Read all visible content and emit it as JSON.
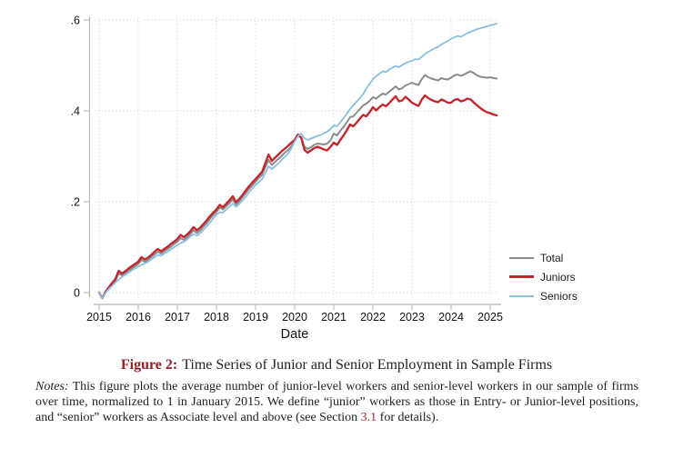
{
  "figure": {
    "caption_label": "Figure 2:",
    "caption_text": "Time Series of Junior and Senior Employment in Sample Firms",
    "notes_label": "Notes:",
    "notes_text_1": "This figure plots the average number of junior-level workers and senior-level workers in our sample of firms over time, normalized to 1 in January 2015. We define “junior” workers as those in Entry- or Junior-level positions, and “senior” workers as Associate level and above (see Section ",
    "notes_link": "3.1",
    "notes_text_2": " for details)."
  },
  "colors": {
    "gridline": "#d8d8d8",
    "axis": "#b5b5b5",
    "tick_text": "#111111",
    "caption_maroon": "#8e2126",
    "link_red": "#b0282e"
  },
  "chart_data": {
    "type": "line",
    "title": "",
    "xlabel": "Date",
    "ylabel": "",
    "xlim": [
      2015,
      2025.6
    ],
    "ylim": [
      0,
      0.6
    ],
    "grid": true,
    "legend_position": "bottom-right",
    "x_unit": "monthly",
    "x_start": "2015-01",
    "x_end": "2025-03",
    "x_ticks": [
      "2015",
      "2016",
      "2017",
      "2018",
      "2019",
      "2020",
      "2021",
      "2022",
      "2023",
      "2024",
      "2025"
    ],
    "y_ticks": [
      {
        "value": 0.0,
        "label": "0"
      },
      {
        "value": 0.2,
        "label": ".2"
      },
      {
        "value": 0.4,
        "label": ".4"
      },
      {
        "value": 0.6,
        "label": ".6"
      }
    ],
    "series": [
      {
        "name": "Total",
        "color": "#8b8b8b",
        "values": [
          0.0,
          -0.012,
          0.001,
          0.01,
          0.018,
          0.026,
          0.042,
          0.038,
          0.043,
          0.048,
          0.053,
          0.058,
          0.063,
          0.072,
          0.068,
          0.072,
          0.078,
          0.084,
          0.09,
          0.086,
          0.091,
          0.096,
          0.101,
          0.107,
          0.112,
          0.12,
          0.116,
          0.122,
          0.129,
          0.137,
          0.131,
          0.137,
          0.145,
          0.153,
          0.162,
          0.17,
          0.178,
          0.187,
          0.183,
          0.19,
          0.197,
          0.205,
          0.194,
          0.201,
          0.21,
          0.219,
          0.228,
          0.236,
          0.244,
          0.252,
          0.259,
          0.276,
          0.292,
          0.281,
          0.288,
          0.294,
          0.301,
          0.308,
          0.314,
          0.322,
          0.334,
          0.346,
          0.341,
          0.321,
          0.316,
          0.32,
          0.325,
          0.328,
          0.327,
          0.326,
          0.328,
          0.335,
          0.35,
          0.346,
          0.356,
          0.365,
          0.375,
          0.386,
          0.388,
          0.396,
          0.404,
          0.412,
          0.416,
          0.422,
          0.43,
          0.427,
          0.433,
          0.438,
          0.436,
          0.442,
          0.448,
          0.454,
          0.447,
          0.45,
          0.456,
          0.459,
          0.462,
          0.459,
          0.457,
          0.47,
          0.479,
          0.474,
          0.471,
          0.469,
          0.467,
          0.472,
          0.47,
          0.469,
          0.473,
          0.478,
          0.48,
          0.477,
          0.48,
          0.484,
          0.487,
          0.483,
          0.478,
          0.475,
          0.474,
          0.473,
          0.474,
          0.472,
          0.471
        ]
      },
      {
        "name": "Juniors",
        "color": "#c4262e",
        "values": [
          0.0,
          -0.012,
          0.002,
          0.012,
          0.021,
          0.03,
          0.048,
          0.042,
          0.047,
          0.053,
          0.058,
          0.063,
          0.068,
          0.078,
          0.073,
          0.077,
          0.083,
          0.09,
          0.096,
          0.091,
          0.096,
          0.101,
          0.107,
          0.112,
          0.118,
          0.127,
          0.122,
          0.128,
          0.135,
          0.144,
          0.137,
          0.143,
          0.151,
          0.159,
          0.168,
          0.176,
          0.183,
          0.193,
          0.188,
          0.196,
          0.203,
          0.212,
          0.199,
          0.206,
          0.215,
          0.225,
          0.234,
          0.242,
          0.25,
          0.258,
          0.266,
          0.285,
          0.304,
          0.29,
          0.297,
          0.304,
          0.311,
          0.317,
          0.323,
          0.33,
          0.336,
          0.348,
          0.341,
          0.314,
          0.308,
          0.313,
          0.318,
          0.321,
          0.318,
          0.315,
          0.313,
          0.321,
          0.33,
          0.325,
          0.336,
          0.346,
          0.357,
          0.37,
          0.366,
          0.374,
          0.383,
          0.391,
          0.388,
          0.397,
          0.408,
          0.401,
          0.408,
          0.414,
          0.41,
          0.417,
          0.425,
          0.432,
          0.421,
          0.423,
          0.431,
          0.425,
          0.418,
          0.414,
          0.411,
          0.425,
          0.434,
          0.428,
          0.424,
          0.421,
          0.419,
          0.425,
          0.422,
          0.418,
          0.418,
          0.424,
          0.426,
          0.421,
          0.423,
          0.427,
          0.425,
          0.418,
          0.412,
          0.406,
          0.401,
          0.397,
          0.395,
          0.392,
          0.39
        ]
      },
      {
        "name": "Seniors",
        "color": "#8abfe0",
        "values": [
          0.0,
          -0.012,
          0.0,
          0.008,
          0.015,
          0.022,
          0.029,
          0.034,
          0.039,
          0.044,
          0.049,
          0.053,
          0.057,
          0.061,
          0.064,
          0.068,
          0.073,
          0.078,
          0.083,
          0.081,
          0.086,
          0.09,
          0.095,
          0.1,
          0.105,
          0.109,
          0.112,
          0.117,
          0.123,
          0.129,
          0.125,
          0.131,
          0.138,
          0.146,
          0.154,
          0.163,
          0.172,
          0.177,
          0.176,
          0.183,
          0.189,
          0.196,
          0.189,
          0.195,
          0.203,
          0.211,
          0.22,
          0.229,
          0.237,
          0.243,
          0.25,
          0.263,
          0.278,
          0.272,
          0.278,
          0.285,
          0.292,
          0.299,
          0.306,
          0.318,
          0.332,
          0.344,
          0.35,
          0.34,
          0.336,
          0.339,
          0.342,
          0.345,
          0.347,
          0.351,
          0.354,
          0.36,
          0.368,
          0.366,
          0.375,
          0.384,
          0.394,
          0.404,
          0.412,
          0.42,
          0.428,
          0.437,
          0.449,
          0.459,
          0.47,
          0.476,
          0.482,
          0.487,
          0.485,
          0.491,
          0.495,
          0.499,
          0.496,
          0.501,
          0.505,
          0.508,
          0.51,
          0.514,
          0.513,
          0.519,
          0.525,
          0.53,
          0.534,
          0.538,
          0.541,
          0.546,
          0.55,
          0.554,
          0.558,
          0.562,
          0.565,
          0.563,
          0.567,
          0.571,
          0.574,
          0.577,
          0.58,
          0.582,
          0.584,
          0.586,
          0.588,
          0.59,
          0.592
        ]
      }
    ]
  }
}
